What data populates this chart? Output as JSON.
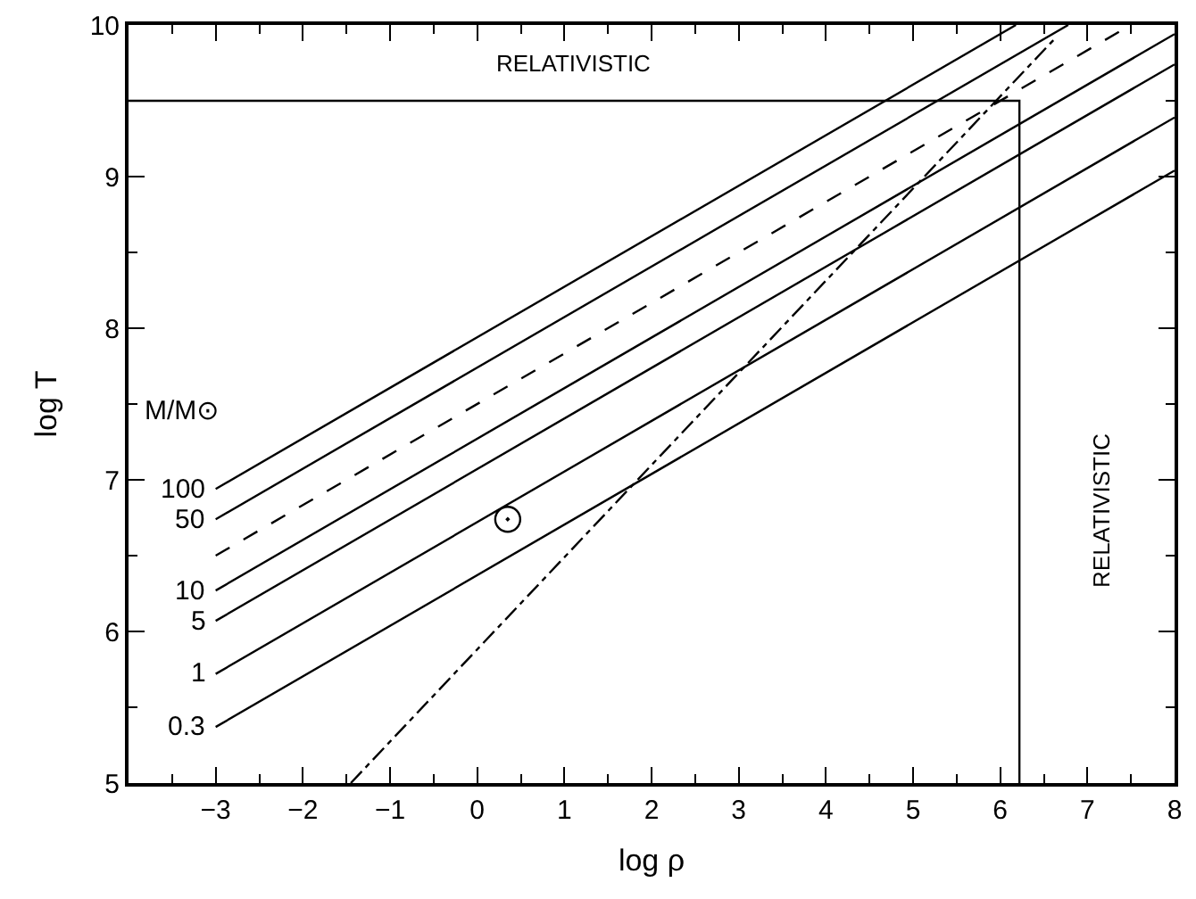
{
  "chart_data": {
    "type": "line",
    "xlabel": "log ρ",
    "ylabel": "log T",
    "legend_title": "M/M⊙",
    "xlim": [
      -4,
      8
    ],
    "ylim": [
      5,
      10
    ],
    "xticks": [
      {
        "value": -3.5,
        "label": null
      },
      -3,
      {
        "value": -2.5,
        "label": null
      },
      -2,
      {
        "value": -1.5,
        "label": null
      },
      -1,
      {
        "value": -0.5,
        "label": null
      },
      0,
      {
        "value": 0.5,
        "label": null
      },
      1,
      {
        "value": 1.5,
        "label": null
      },
      2,
      {
        "value": 2.5,
        "label": null
      },
      3,
      {
        "value": 3.5,
        "label": null
      },
      4,
      {
        "value": 4.5,
        "label": null
      },
      5,
      {
        "value": 5.5,
        "label": null
      },
      6,
      {
        "value": 6.5,
        "label": null
      },
      7,
      {
        "value": 7.5,
        "label": null
      },
      8
    ],
    "yticks": [
      5,
      {
        "value": 5.5,
        "label": null
      },
      6,
      {
        "value": 6.5,
        "label": null
      },
      7,
      {
        "value": 7.5,
        "label": null
      },
      8,
      {
        "value": 8.5,
        "label": null
      },
      9,
      {
        "value": 9.5,
        "label": null
      },
      10
    ],
    "grid": false,
    "annotations": [
      "RELATIVISTIC",
      "RELATIVISTIC"
    ],
    "series": [
      {
        "name": "100",
        "color": "#000000",
        "line_style": "solid",
        "x": [
          -3,
          6.18
        ],
        "values": [
          6.94,
          10
        ]
      },
      {
        "name": "50",
        "color": "#000000",
        "line_style": "solid",
        "x": [
          -3,
          6.78
        ],
        "values": [
          6.74,
          10
        ]
      },
      {
        "color": "#000000",
        "line_style": "dashed",
        "x": [
          -3,
          7.5
        ],
        "values": [
          6.5,
          10
        ]
      },
      {
        "name": "10",
        "color": "#000000",
        "line_style": "solid",
        "x": [
          -3,
          8
        ],
        "values": [
          6.27,
          9.94
        ]
      },
      {
        "name": "5",
        "color": "#000000",
        "line_style": "solid",
        "x": [
          -3,
          8
        ],
        "values": [
          6.07,
          9.74
        ]
      },
      {
        "name": "1",
        "color": "#000000",
        "line_style": "solid",
        "x": [
          -3,
          8
        ],
        "values": [
          5.72,
          9.39
        ]
      },
      {
        "name": "0.3",
        "color": "#000000",
        "line_style": "solid",
        "x": [
          -3,
          8
        ],
        "values": [
          5.37,
          9.04
        ]
      },
      {
        "color": "#000000",
        "line_style": "dashdot",
        "x": [
          -1.45,
          6.61
        ],
        "values": [
          5,
          9.9
        ]
      },
      {
        "color": "#000000",
        "line_style": "solid",
        "x": [
          -4,
          6.22,
          6.22
        ],
        "values": [
          9.5,
          9.5,
          5
        ]
      },
      {
        "type": "scatter",
        "marker": "circle",
        "color": "#000000",
        "x": [
          0.35
        ],
        "values": [
          6.74
        ]
      }
    ]
  }
}
